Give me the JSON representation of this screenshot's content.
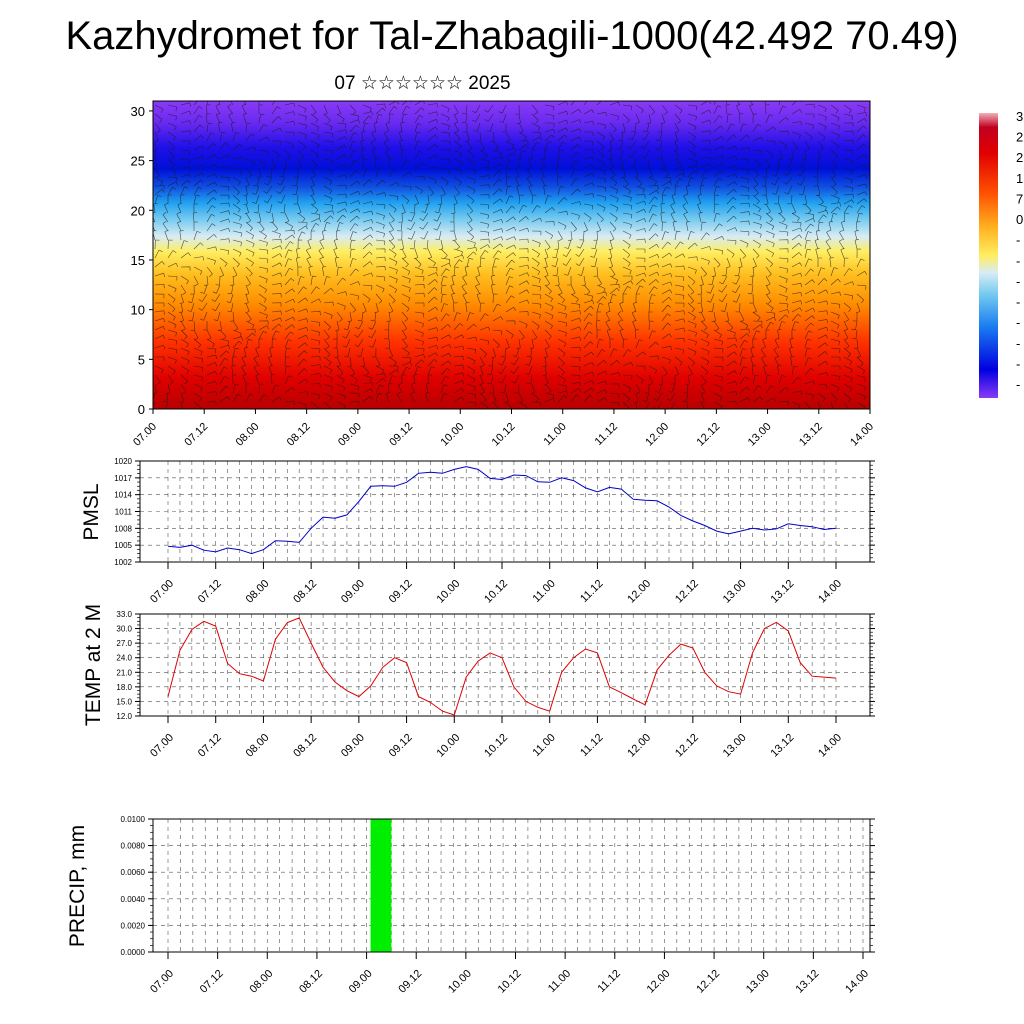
{
  "title": "Kazhydromet for Tal-Zhabagili-1000(42.492 70.49)",
  "subtitle": "07 ☆☆☆☆☆☆ 2025",
  "chart_data": [
    {
      "type": "heatmap",
      "title": "",
      "xlabel": "",
      "ylabel": "",
      "x_ticks": [
        "07.00",
        "07.12",
        "08.00",
        "08.12",
        "09.00",
        "09.12",
        "10.00",
        "10.12",
        "11.00",
        "11.12",
        "12.00",
        "12.12",
        "13.00",
        "13.12",
        "14.00"
      ],
      "y_ticks": [
        0,
        5,
        10,
        15,
        20,
        25,
        30
      ],
      "ylim": [
        0,
        31
      ],
      "colorbar_labels": [
        "3",
        "2",
        "2",
        "1",
        "7",
        "0",
        "-",
        "-",
        "-",
        "-",
        "-",
        "-",
        "-",
        "-"
      ],
      "overlay": "wind barbs"
    },
    {
      "type": "line",
      "ylabel": "PMSL",
      "ylim": [
        1002,
        1020
      ],
      "y_ticks": [
        1002,
        1005,
        1008,
        1011,
        1014,
        1017,
        1020
      ],
      "x_ticks": [
        "07.00",
        "07.12",
        "08.00",
        "08.12",
        "09.00",
        "09.12",
        "10.00",
        "10.12",
        "11.00",
        "11.12",
        "12.00",
        "12.12",
        "13.00",
        "13.12",
        "14.00"
      ],
      "line_color": "#0000cc",
      "values": [
        1004.8,
        1004.6,
        1005.0,
        1004.1,
        1003.8,
        1004.5,
        1004.2,
        1003.5,
        1004.2,
        1005.8,
        1005.7,
        1005.5,
        1008.0,
        1010.0,
        1009.8,
        1010.4,
        1012.8,
        1015.5,
        1015.6,
        1015.5,
        1016.2,
        1017.8,
        1018.0,
        1017.8,
        1018.5,
        1019.0,
        1018.5,
        1016.9,
        1016.7,
        1017.5,
        1017.4,
        1016.3,
        1016.2,
        1017.0,
        1016.5,
        1015.2,
        1014.5,
        1015.3,
        1015.0,
        1013.2,
        1013.0,
        1012.9,
        1011.8,
        1010.3,
        1009.3,
        1008.5,
        1007.5,
        1007.0,
        1007.5,
        1008.0,
        1007.7,
        1007.9,
        1008.8,
        1008.5,
        1008.3,
        1007.8,
        1008.0
      ]
    },
    {
      "type": "line",
      "ylabel": "TEMP at 2 M",
      "ylim": [
        12.0,
        33.0
      ],
      "y_ticks": [
        "12.0",
        "15.0",
        "18.0",
        "21.0",
        "24.0",
        "27.0",
        "30.0",
        "33.0"
      ],
      "x_ticks": [
        "07.00",
        "07.12",
        "08.00",
        "08.12",
        "09.00",
        "09.12",
        "10.00",
        "10.12",
        "11.00",
        "11.12",
        "12.00",
        "12.12",
        "13.00",
        "13.12",
        "14.00"
      ],
      "line_color": "#dd0000",
      "values": [
        16.0,
        25.5,
        29.8,
        31.5,
        30.5,
        22.8,
        20.7,
        20.2,
        19.2,
        27.8,
        31.2,
        32.2,
        27.0,
        22.0,
        19.0,
        17.2,
        16.0,
        18.2,
        22.0,
        24.0,
        23.0,
        16.0,
        14.8,
        13.0,
        12.2,
        20.0,
        23.3,
        25.0,
        24.0,
        18.0,
        15.0,
        13.8,
        13.0,
        21.0,
        24.0,
        25.8,
        25.0,
        18.0,
        16.8,
        15.5,
        14.3,
        21.5,
        24.5,
        26.8,
        26.0,
        21.0,
        18.2,
        17.0,
        16.5,
        25.0,
        30.0,
        31.3,
        29.5,
        23.0,
        20.2,
        20.0,
        19.8
      ]
    },
    {
      "type": "bar",
      "ylabel": "PRECIP, mm",
      "ylim": [
        0.0,
        0.01
      ],
      "y_ticks": [
        "0.0000",
        "0.0020",
        "0.0040",
        "0.0060",
        "0.0080",
        "0.0100"
      ],
      "x_ticks": [
        "07.00",
        "07.12",
        "08.00",
        "08.12",
        "09.00",
        "09.12",
        "10.00",
        "10.12",
        "11.00",
        "11.12",
        "12.00",
        "12.12",
        "13.00",
        "13.12",
        "14.00"
      ],
      "bar_color": "#00ee00",
      "bars": [
        {
          "x_start": 9.04,
          "x_end": 9.25,
          "value": 0.01
        }
      ]
    }
  ]
}
